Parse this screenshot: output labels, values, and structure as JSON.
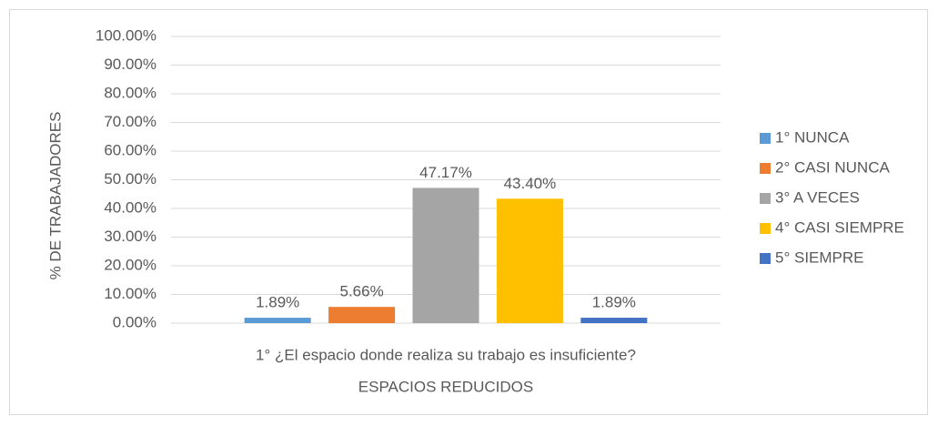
{
  "chart_data": {
    "type": "bar",
    "categories": [
      "1° ¿El espacio donde realiza su trabajo es insuficiente?"
    ],
    "x_label": "ESPACIOS REDUCIDOS",
    "y_label": "% DE  TRABAJADORES",
    "series": [
      {
        "name": "1° NUNCA",
        "color": "#5b9bd5",
        "values": [
          1.89
        ],
        "value_labels": [
          "1.89%"
        ]
      },
      {
        "name": "2° CASI NUNCA",
        "color": "#ed7d31",
        "values": [
          5.66
        ],
        "value_labels": [
          "5.66%"
        ]
      },
      {
        "name": "3° A VECES",
        "color": "#a5a5a5",
        "values": [
          47.17
        ],
        "value_labels": [
          "47.17%"
        ]
      },
      {
        "name": "4° CASI SIEMPRE",
        "color": "#ffc000",
        "values": [
          43.4
        ],
        "value_labels": [
          "43.40%"
        ]
      },
      {
        "name": "5° SIEMPRE",
        "color": "#4472c4",
        "values": [
          1.89
        ],
        "value_labels": [
          "1.89%"
        ]
      }
    ],
    "ylim": [
      0,
      100
    ],
    "yticks": [
      {
        "value": 0,
        "label": "0.00%"
      },
      {
        "value": 10,
        "label": "10.00%"
      },
      {
        "value": 20,
        "label": "20.00%"
      },
      {
        "value": 30,
        "label": "30.00%"
      },
      {
        "value": 40,
        "label": "40.00%"
      },
      {
        "value": 50,
        "label": "50.00%"
      },
      {
        "value": 60,
        "label": "60.00%"
      },
      {
        "value": 70,
        "label": "70.00%"
      },
      {
        "value": 80,
        "label": "80.00%"
      },
      {
        "value": 90,
        "label": "90.00%"
      },
      {
        "value": 100,
        "label": "100.00%"
      }
    ],
    "grid": true,
    "legend": "right"
  }
}
